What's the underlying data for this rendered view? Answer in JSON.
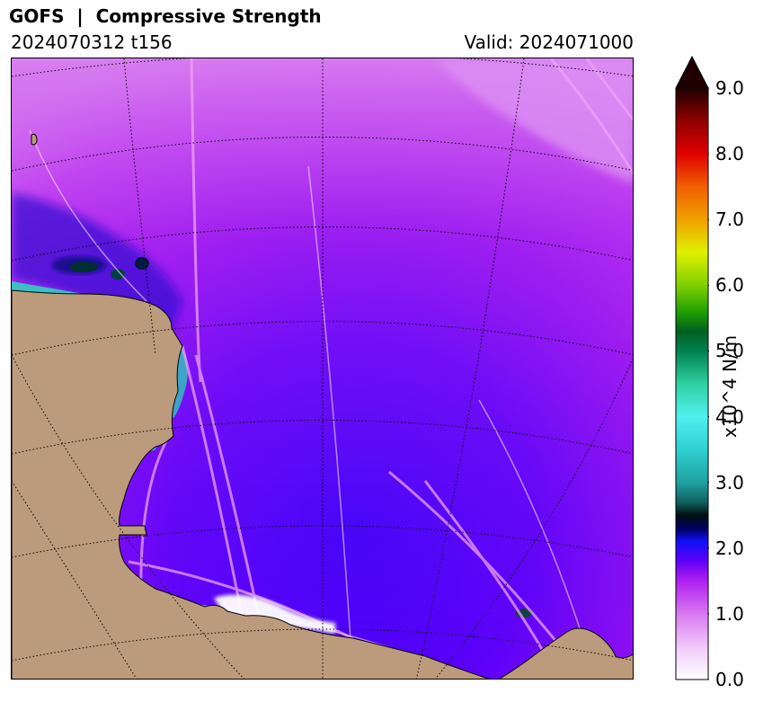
{
  "title": "GOFS  |  Compressive Strength",
  "run_label": "2024070312 t156",
  "valid_label": "Valid: 2024071000",
  "colorbar": {
    "label": "x10^4 N/m",
    "min": 0.0,
    "max": 9.0,
    "ticks": [
      "0.0",
      "1.0",
      "2.0",
      "3.0",
      "4.0",
      "5.0",
      "6.0",
      "7.0",
      "8.0",
      "9.0"
    ],
    "extend": "max",
    "stops": [
      {
        "value": 0.0,
        "color": "#ffffff"
      },
      {
        "value": 0.5,
        "color": "#f0c8f8"
      },
      {
        "value": 1.0,
        "color": "#d878f0"
      },
      {
        "value": 1.5,
        "color": "#b020f0"
      },
      {
        "value": 1.8,
        "color": "#6000f8"
      },
      {
        "value": 2.1,
        "color": "#1010f8"
      },
      {
        "value": 2.3,
        "color": "#000060"
      },
      {
        "value": 2.5,
        "color": "#001010"
      },
      {
        "value": 2.7,
        "color": "#106060"
      },
      {
        "value": 3.0,
        "color": "#20a0a0"
      },
      {
        "value": 3.5,
        "color": "#30d0d0"
      },
      {
        "value": 4.0,
        "color": "#50f0f0"
      },
      {
        "value": 4.5,
        "color": "#30d0a0"
      },
      {
        "value": 5.0,
        "color": "#008050"
      },
      {
        "value": 5.3,
        "color": "#006020"
      },
      {
        "value": 5.6,
        "color": "#20a000"
      },
      {
        "value": 6.0,
        "color": "#80d000"
      },
      {
        "value": 6.5,
        "color": "#e0f000"
      },
      {
        "value": 7.0,
        "color": "#f0a000"
      },
      {
        "value": 7.5,
        "color": "#f06000"
      },
      {
        "value": 8.0,
        "color": "#e00000"
      },
      {
        "value": 8.5,
        "color": "#900000"
      },
      {
        "value": 9.0,
        "color": "#200000"
      }
    ]
  },
  "map": {
    "land_color": "#bc9b7c",
    "grid_style": "dotted",
    "projection": "polar-stereographic"
  }
}
